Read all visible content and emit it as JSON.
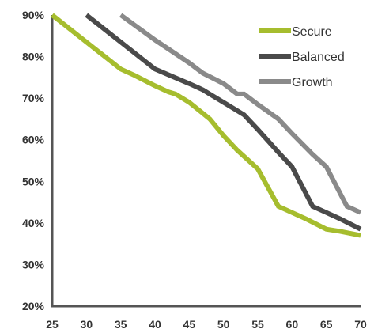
{
  "chart_data": {
    "type": "line",
    "title": "",
    "xlabel": "",
    "ylabel": "",
    "x": [
      25,
      30,
      35,
      40,
      45,
      50,
      55,
      60,
      65,
      70
    ],
    "xlim": [
      25,
      70
    ],
    "ylim": [
      20,
      90
    ],
    "x_ticks": [
      "25",
      "30",
      "35",
      "40",
      "45",
      "50",
      "55",
      "60",
      "65",
      "70"
    ],
    "y_ticks": [
      {
        "value": 20,
        "label": "20%"
      },
      {
        "value": 30,
        "label": "30%"
      },
      {
        "value": 40,
        "label": "40%"
      },
      {
        "value": 50,
        "label": "50%"
      },
      {
        "value": 60,
        "label": "60%"
      },
      {
        "value": 70,
        "label": "70%"
      },
      {
        "value": 80,
        "label": "80%"
      },
      {
        "value": 90,
        "label": "90%"
      }
    ],
    "grid": false,
    "legend_position": "top-right",
    "series": [
      {
        "name": "Secure",
        "color": "#a6bd2e",
        "points": [
          [
            25,
            90
          ],
          [
            30,
            83.5
          ],
          [
            35,
            77
          ],
          [
            37,
            75.5
          ],
          [
            40,
            73
          ],
          [
            42,
            71.5
          ],
          [
            43,
            71
          ],
          [
            45,
            69
          ],
          [
            48,
            65
          ],
          [
            50,
            61
          ],
          [
            52,
            57.5
          ],
          [
            55,
            53
          ],
          [
            58,
            44
          ],
          [
            60,
            42.5
          ],
          [
            62,
            41
          ],
          [
            65,
            38.5
          ],
          [
            67,
            38
          ],
          [
            70,
            37
          ]
        ]
      },
      {
        "name": "Balanced",
        "color": "#4a4a4a",
        "points": [
          [
            30,
            90
          ],
          [
            35,
            83.5
          ],
          [
            40,
            77
          ],
          [
            45,
            73.5
          ],
          [
            47,
            72
          ],
          [
            48,
            71
          ],
          [
            50,
            69
          ],
          [
            53,
            66
          ],
          [
            55,
            62.5
          ],
          [
            58,
            57
          ],
          [
            60,
            53.5
          ],
          [
            63,
            44
          ],
          [
            65,
            42.5
          ],
          [
            67,
            41
          ],
          [
            70,
            38.5
          ]
        ]
      },
      {
        "name": "Growth",
        "color": "#8a8a8a",
        "points": [
          [
            35,
            90
          ],
          [
            40,
            84
          ],
          [
            45,
            78.5
          ],
          [
            47,
            76
          ],
          [
            50,
            73.5
          ],
          [
            52,
            71
          ],
          [
            53,
            71
          ],
          [
            55,
            68.5
          ],
          [
            58,
            65
          ],
          [
            60,
            61.5
          ],
          [
            63,
            56.5
          ],
          [
            65,
            53.5
          ],
          [
            68,
            44
          ],
          [
            70,
            42.5
          ]
        ]
      }
    ]
  }
}
